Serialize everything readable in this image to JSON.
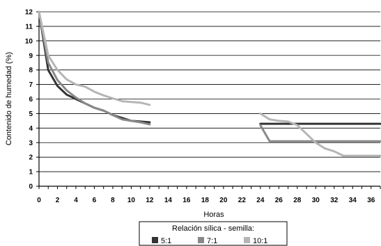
{
  "chart_data": {
    "type": "line",
    "title": "",
    "xlabel": "Horas",
    "ylabel": "Contenido de humedad (%)",
    "xlim": [
      0,
      37
    ],
    "ylim": [
      0,
      12
    ],
    "x_ticks": [
      "0",
      "2",
      "4",
      "6",
      "8",
      "10",
      "12",
      "14",
      "16",
      "18",
      "20",
      "22",
      "24",
      "26",
      "28",
      "30",
      "32",
      "34",
      "36"
    ],
    "y_ticks": [
      "0",
      "1",
      "2",
      "3",
      "4",
      "5",
      "6",
      "7",
      "8",
      "9",
      "10",
      "11",
      "12"
    ],
    "grid": "horizontal",
    "legend": {
      "title": "Relación sílica - semilla:",
      "placement": "bottom"
    },
    "series": [
      {
        "name": "5:1",
        "color": "#333333",
        "segments": [
          [
            [
              0,
              12
            ],
            [
              1,
              8.0
            ],
            [
              2,
              6.9
            ],
            [
              3,
              6.3
            ],
            [
              4,
              6.0
            ],
            [
              5,
              5.7
            ],
            [
              6,
              5.4
            ],
            [
              7,
              5.2
            ],
            [
              8,
              4.9
            ],
            [
              9,
              4.7
            ],
            [
              10,
              4.5
            ],
            [
              11,
              4.45
            ],
            [
              12,
              4.4
            ]
          ],
          [
            [
              24,
              4.3
            ],
            [
              37,
              4.3
            ]
          ]
        ]
      },
      {
        "name": "7:1",
        "color": "#888888",
        "segments": [
          [
            [
              0,
              12
            ],
            [
              1,
              8.5
            ],
            [
              2,
              7.3
            ],
            [
              3,
              6.6
            ],
            [
              4,
              6.1
            ],
            [
              5,
              5.7
            ],
            [
              6,
              5.4
            ],
            [
              7,
              5.2
            ],
            [
              8,
              4.9
            ],
            [
              9,
              4.6
            ],
            [
              10,
              4.5
            ],
            [
              11,
              4.4
            ],
            [
              12,
              4.25
            ]
          ],
          [
            [
              24,
              4.2
            ],
            [
              25,
              3.1
            ],
            [
              37,
              3.1
            ]
          ]
        ]
      },
      {
        "name": "10:1",
        "color": "#b5b5b5",
        "segments": [
          [
            [
              0,
              12
            ],
            [
              1,
              9.0
            ],
            [
              2,
              8.0
            ],
            [
              3,
              7.35
            ],
            [
              4,
              7.0
            ],
            [
              5,
              6.85
            ],
            [
              6,
              6.5
            ],
            [
              7,
              6.25
            ],
            [
              8,
              6.05
            ],
            [
              9,
              5.85
            ],
            [
              10,
              5.8
            ],
            [
              11,
              5.75
            ],
            [
              12,
              5.6
            ]
          ],
          [
            [
              24,
              5.0
            ],
            [
              25,
              4.6
            ],
            [
              26,
              4.5
            ],
            [
              27,
              4.45
            ],
            [
              28,
              4.2
            ],
            [
              29,
              3.6
            ],
            [
              30,
              3.0
            ],
            [
              31,
              2.6
            ],
            [
              32,
              2.4
            ],
            [
              33,
              2.1
            ],
            [
              37,
              2.1
            ]
          ]
        ]
      }
    ]
  }
}
